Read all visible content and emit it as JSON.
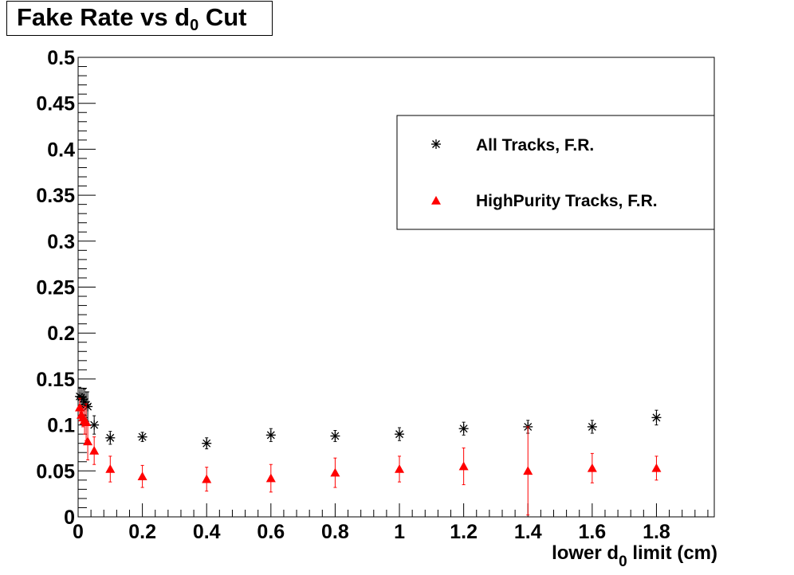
{
  "title": {
    "main": "Fake Rate vs d",
    "subscript": "0",
    "suffix": " Cut"
  },
  "xlabel": {
    "main": "lower d",
    "subscript": "0",
    "suffix": " limit (cm)"
  },
  "chart_data": {
    "type": "scatter",
    "xlim": [
      0,
      1.98
    ],
    "ylim": [
      0,
      0.5
    ],
    "xticks": [
      0,
      0.2,
      0.4,
      0.6,
      0.8,
      1,
      1.2,
      1.4,
      1.6,
      1.8
    ],
    "xtick_labels": [
      "0",
      "0.2",
      "0.4",
      "0.6",
      "0.8",
      "1",
      "1.2",
      "1.4",
      "1.6",
      "1.8"
    ],
    "yticks": [
      0,
      0.05,
      0.1,
      0.15,
      0.2,
      0.25,
      0.3,
      0.35,
      0.4,
      0.45,
      0.5
    ],
    "ytick_labels": [
      "0",
      "0.05",
      "0.1",
      "0.15",
      "0.2",
      "0.25",
      "0.3",
      "0.35",
      "0.4",
      "0.45",
      "0.5"
    ],
    "grid": false,
    "legend_position": "top-right",
    "series": [
      {
        "name": "All Tracks, F.R.",
        "marker": "star",
        "color": "#000000",
        "x": [
          0.005,
          0.01,
          0.015,
          0.02,
          0.025,
          0.03,
          0.05,
          0.1,
          0.2,
          0.4,
          0.6,
          0.8,
          1.0,
          1.2,
          1.4,
          1.6,
          1.8
        ],
        "y": [
          0.131,
          0.13,
          0.128,
          0.125,
          0.122,
          0.12,
          0.1,
          0.086,
          0.087,
          0.08,
          0.089,
          0.088,
          0.09,
          0.096,
          0.098,
          0.098,
          0.108
        ],
        "err": [
          0.01,
          0.01,
          0.012,
          0.014,
          0.014,
          0.016,
          0.01,
          0.007,
          0.005,
          0.006,
          0.007,
          0.006,
          0.007,
          0.007,
          0.007,
          0.007,
          0.008
        ]
      },
      {
        "name": "HighPurity Tracks, F.R.",
        "marker": "triangle",
        "color": "#ff0000",
        "x": [
          0.005,
          0.01,
          0.015,
          0.02,
          0.025,
          0.03,
          0.05,
          0.1,
          0.2,
          0.4,
          0.6,
          0.8,
          1.0,
          1.2,
          1.4,
          1.6,
          1.8
        ],
        "y": [
          0.119,
          0.111,
          0.108,
          0.105,
          0.103,
          0.082,
          0.072,
          0.052,
          0.044,
          0.041,
          0.042,
          0.048,
          0.052,
          0.055,
          0.05,
          0.053,
          0.053
        ],
        "err": [
          0.01,
          0.01,
          0.01,
          0.015,
          0.02,
          0.02,
          0.015,
          0.014,
          0.012,
          0.013,
          0.015,
          0.016,
          0.014,
          0.02,
          0.048,
          0.016,
          0.013
        ]
      }
    ]
  }
}
